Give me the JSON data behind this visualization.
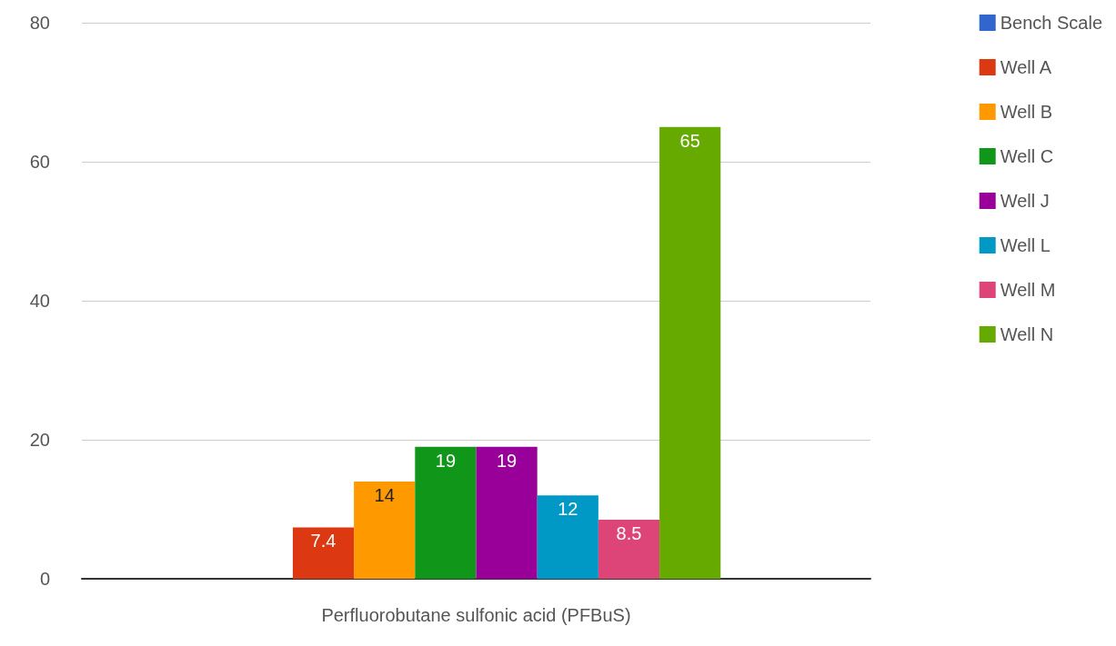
{
  "chart_data": {
    "type": "bar",
    "categories": [
      "Perfluorobutane sulfonic acid (PFBuS)"
    ],
    "series": [
      {
        "name": "Bench Scale",
        "color": "#3366cc",
        "values": [
          0
        ],
        "value_labels": [
          null
        ]
      },
      {
        "name": "Well A",
        "color": "#dc3912",
        "values": [
          7.4
        ],
        "value_labels": [
          "7.4"
        ]
      },
      {
        "name": "Well B",
        "color": "#ff9900",
        "values": [
          14
        ],
        "value_labels": [
          "14"
        ]
      },
      {
        "name": "Well C",
        "color": "#109618",
        "values": [
          19
        ],
        "value_labels": [
          "19"
        ]
      },
      {
        "name": "Well J",
        "color": "#990099",
        "values": [
          19
        ],
        "value_labels": [
          "19"
        ]
      },
      {
        "name": "Well L",
        "color": "#0099c6",
        "values": [
          12
        ],
        "value_labels": [
          "12"
        ]
      },
      {
        "name": "Well M",
        "color": "#dd4477",
        "values": [
          8.5
        ],
        "value_labels": [
          "8.5"
        ]
      },
      {
        "name": "Well N",
        "color": "#66aa00",
        "values": [
          65
        ],
        "value_labels": [
          "65"
        ]
      }
    ],
    "ylim": [
      0,
      80
    ],
    "yticks": [
      0,
      20,
      40,
      60,
      80
    ],
    "grid": "y",
    "legend": "right"
  }
}
